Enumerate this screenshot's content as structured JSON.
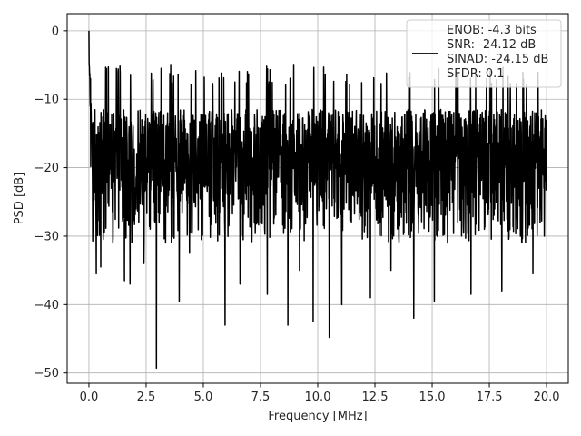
{
  "chart_data": {
    "type": "line",
    "xlabel": "Frequency [MHz]",
    "ylabel": "PSD [dB]",
    "xlim": [
      -0.95,
      20.95
    ],
    "ylim": [
      -51.5,
      2.5
    ],
    "xticks": [
      0.0,
      2.5,
      5.0,
      7.5,
      10.0,
      12.5,
      15.0,
      17.5,
      20.0
    ],
    "xtick_labels": [
      "0.0",
      "2.5",
      "5.0",
      "7.5",
      "10.0",
      "12.5",
      "15.0",
      "17.5",
      "20.0"
    ],
    "yticks": [
      0,
      -10,
      -20,
      -30,
      -40,
      -50
    ],
    "ytick_labels": [
      "0",
      "−10",
      "−20",
      "−30",
      "−40",
      "−50"
    ],
    "grid": true,
    "legend_position": "top-right",
    "legend_lines": [
      "ENOB: -4.3 bits",
      "SNR: -24.12 dB",
      "SINAD: -24.15 dB",
      "SFDR: 0.1"
    ],
    "series": [
      {
        "color": "#000000",
        "x_range": [
          0.0,
          20.0
        ],
        "num_points": 2048,
        "peak": {
          "x": 0.0,
          "y": 0.0
        },
        "typical_upper": -10.0,
        "typical_lower": -28.0,
        "deep_nulls": [
          {
            "x": 0.32,
            "y": -35.5
          },
          {
            "x": 0.52,
            "y": -34.5
          },
          {
            "x": 1.05,
            "y": -31.0
          },
          {
            "x": 1.55,
            "y": -36.5
          },
          {
            "x": 1.8,
            "y": -37.0
          },
          {
            "x": 2.4,
            "y": -34.0
          },
          {
            "x": 2.95,
            "y": -49.3
          },
          {
            "x": 3.35,
            "y": -31.0
          },
          {
            "x": 3.95,
            "y": -39.5
          },
          {
            "x": 4.4,
            "y": -32.5
          },
          {
            "x": 5.95,
            "y": -43.0
          },
          {
            "x": 6.6,
            "y": -37.0
          },
          {
            "x": 7.8,
            "y": -38.5
          },
          {
            "x": 8.7,
            "y": -43.0
          },
          {
            "x": 9.2,
            "y": -35.0
          },
          {
            "x": 9.8,
            "y": -42.5
          },
          {
            "x": 10.5,
            "y": -44.8
          },
          {
            "x": 11.05,
            "y": -40.0
          },
          {
            "x": 12.3,
            "y": -39.0
          },
          {
            "x": 13.2,
            "y": -35.0
          },
          {
            "x": 14.2,
            "y": -42.0
          },
          {
            "x": 15.1,
            "y": -39.5
          },
          {
            "x": 16.7,
            "y": -38.5
          },
          {
            "x": 18.05,
            "y": -38.0
          },
          {
            "x": 19.4,
            "y": -35.5
          },
          {
            "x": 19.9,
            "y": -30.0
          }
        ]
      }
    ]
  }
}
